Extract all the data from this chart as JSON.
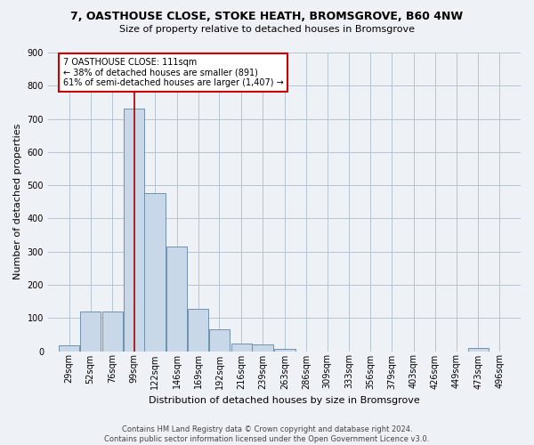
{
  "title_line1": "7, OASTHOUSE CLOSE, STOKE HEATH, BROMSGROVE, B60 4NW",
  "title_line2": "Size of property relative to detached houses in Bromsgrove",
  "xlabel": "Distribution of detached houses by size in Bromsgrove",
  "ylabel": "Number of detached properties",
  "bar_color": "#c8d8e8",
  "bar_edge_color": "#7090b0",
  "annotation_box_text": "7 OASTHOUSE CLOSE: 111sqm\n← 38% of detached houses are smaller (891)\n61% of semi-detached houses are larger (1,407) →",
  "vline_x": 111,
  "vline_color": "#aa0000",
  "categories": [
    "29sqm",
    "52sqm",
    "76sqm",
    "99sqm",
    "122sqm",
    "146sqm",
    "169sqm",
    "192sqm",
    "216sqm",
    "239sqm",
    "263sqm",
    "286sqm",
    "309sqm",
    "333sqm",
    "356sqm",
    "379sqm",
    "403sqm",
    "426sqm",
    "449sqm",
    "473sqm",
    "496sqm"
  ],
  "bin_left": [
    29,
    52,
    76,
    99,
    122,
    146,
    169,
    192,
    216,
    239,
    263,
    286,
    309,
    333,
    356,
    379,
    403,
    426,
    449,
    473,
    496
  ],
  "bin_width": 23,
  "values": [
    18,
    120,
    120,
    730,
    475,
    315,
    128,
    65,
    23,
    20,
    8,
    0,
    0,
    0,
    0,
    0,
    0,
    0,
    0,
    10,
    0
  ],
  "ylim": [
    0,
    900
  ],
  "yticks": [
    0,
    100,
    200,
    300,
    400,
    500,
    600,
    700,
    800,
    900
  ],
  "footer_line1": "Contains HM Land Registry data © Crown copyright and database right 2024.",
  "footer_line2": "Contains public sector information licensed under the Open Government Licence v3.0.",
  "background_color": "#eef2f6",
  "plot_background": "#eef2f6",
  "grid_color": "#b8c4d0",
  "title_fontsize": 9,
  "subtitle_fontsize": 8,
  "ylabel_fontsize": 8,
  "xlabel_fontsize": 8,
  "tick_fontsize": 7,
  "footer_fontsize": 6,
  "annot_fontsize": 7
}
